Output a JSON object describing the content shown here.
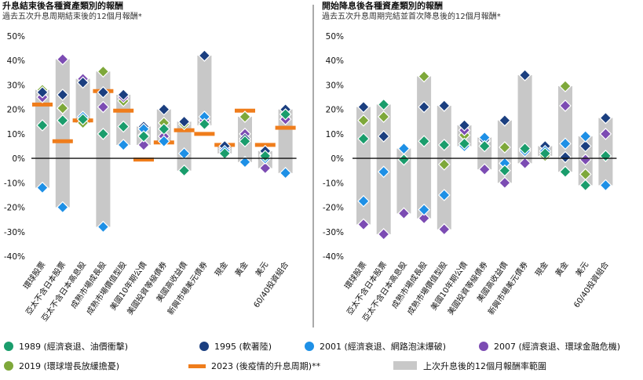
{
  "colors": {
    "y1989": "#1a9d6c",
    "y1995": "#1b3f80",
    "y2001": "#1e90e6",
    "y2007": "#7c4cb3",
    "y2019": "#7ea83a",
    "y2023": "#ef7d1c",
    "range": "#c8c8c8"
  },
  "legend": [
    {
      "key": "y1989",
      "marker": "circle",
      "label": "1989 (經濟衰退、油價衝擊)"
    },
    {
      "key": "y1995",
      "marker": "circle",
      "label": "1995 (軟著陸)"
    },
    {
      "key": "y2001",
      "marker": "circle",
      "label": "2001 (經濟衰退、網路泡沫爆破)"
    },
    {
      "key": "y2007",
      "marker": "circle",
      "label": "2007 (經濟衰退、環球金融危機)"
    },
    {
      "key": "y2019",
      "marker": "circle",
      "label": "2019 (環球增長放緩擔憂)"
    },
    {
      "key": "y2023",
      "marker": "line",
      "label": "2023 (後疫情的升息周期)**"
    },
    {
      "key": "range",
      "marker": "rect",
      "label": "上次升息後的12個月報酬率範圍"
    }
  ],
  "chart_data": [
    {
      "type": "range-scatter",
      "title": "升息結束後各種資產類別的報酬",
      "subtitle": "過去五次升息周期結束後的12個月報酬*",
      "ylim": [
        -40,
        50
      ],
      "yticks": [
        -40,
        -30,
        -20,
        -10,
        0,
        10,
        20,
        30,
        40,
        50
      ],
      "ytick_labels": [
        "-40%",
        "-30%",
        "-20%",
        "-10%",
        "0%",
        "10%",
        "20%",
        "30%",
        "40%",
        "50%"
      ],
      "grid": false,
      "categories": [
        "環球股票",
        "亞太不含日本股票",
        "亞太不含日本高息股",
        "成熟市場成長股",
        "成熟市場價值型股",
        "美國10年期公債",
        "美國投資等級債券",
        "美國高收益債",
        "新興市場美元債券",
        "現金",
        "黃金",
        "美元",
        "60/40投資組合"
      ],
      "series": {
        "y1989": [
          13.5,
          15.5,
          16,
          10,
          13,
          9,
          12,
          -5,
          14,
          2,
          7,
          1,
          18
        ],
        "y1995": [
          27,
          26,
          31,
          27,
          26,
          13,
          20,
          15,
          42,
          5,
          8,
          3,
          20
        ],
        "y2001": [
          -12,
          -20,
          17,
          -28,
          5.5,
          12,
          7,
          2,
          17,
          3,
          -1.5,
          0,
          -6
        ],
        "y2007": [
          25,
          40.5,
          32.5,
          21,
          25,
          5.5,
          9,
          15,
          15.5,
          4,
          10,
          -4,
          16
        ],
        "y2019": [
          28,
          20.5,
          14.5,
          35.5,
          23.5,
          9.5,
          14.5,
          14,
          13.5,
          2,
          17,
          1.5,
          18
        ],
        "y2023": [
          22,
          7,
          15.5,
          27.5,
          19.5,
          -0.5,
          6.5,
          11.5,
          10,
          5.5,
          19.5,
          5.5,
          12.5
        ]
      }
    },
    {
      "type": "range-scatter",
      "title": "開始降息後各種資產類別的報酬",
      "subtitle": "過去五次升息周期完結並首次降息後的12個月報酬*",
      "ylim": [
        -40,
        50
      ],
      "yticks": [
        -40,
        -30,
        -20,
        -10,
        0,
        10,
        20,
        30,
        40,
        50
      ],
      "ytick_labels": [
        "-40%",
        "-30%",
        "-20%",
        "-10%",
        "0%",
        "10%",
        "20%",
        "30%",
        "40%",
        "50%"
      ],
      "grid": false,
      "categories": [
        "環球股票",
        "亞太不含日本股票",
        "亞太不含日本高息股",
        "成熟市場成長股",
        "成熟市場價值型股",
        "美國10年期公債",
        "美國投資等級債券",
        "美國高收益債",
        "新興市場美元債券",
        "現金",
        "黃金",
        "美元",
        "60/40投資組合"
      ],
      "series": {
        "y1989": [
          8,
          22,
          -0.5,
          7,
          5.5,
          6,
          5,
          -5,
          4,
          2,
          -5.5,
          -11,
          1
        ],
        "y1995": [
          21,
          9,
          -0.5,
          21,
          21.5,
          13.5,
          7.5,
          15.5,
          34,
          5,
          0.5,
          5,
          16.5
        ],
        "y2001": [
          -17.5,
          -5.5,
          4,
          -21,
          -15,
          5,
          8.5,
          -2,
          3,
          3,
          6,
          9,
          -11
        ],
        "y2007": [
          -27,
          -31,
          -22.5,
          -24.5,
          -29,
          11.5,
          -4.5,
          -10,
          -2,
          5,
          21.5,
          -0.5,
          10
        ],
        "y2019": [
          15.5,
          17,
          -0.5,
          33.5,
          -2.5,
          9.5,
          7,
          4.5,
          3.5,
          1,
          29.5,
          -6.5,
          1
        ]
      }
    }
  ]
}
